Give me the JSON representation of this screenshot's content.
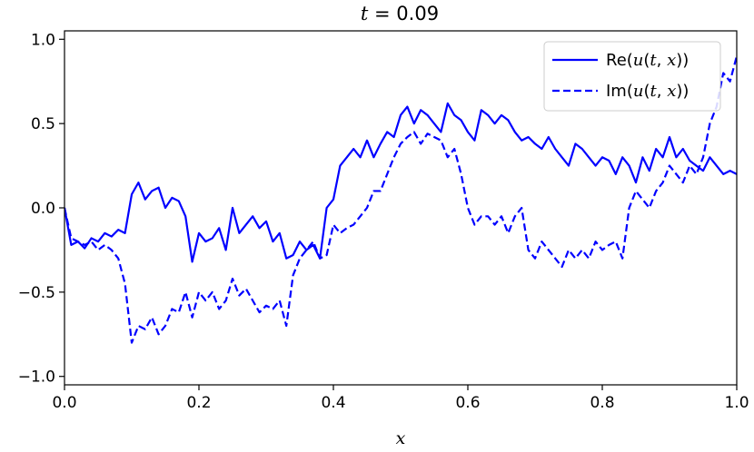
{
  "chart_data": {
    "type": "line",
    "title": "t = 0.09",
    "xlabel": "x",
    "ylabel": "",
    "xlim": [
      0.0,
      1.0
    ],
    "ylim": [
      -1.05,
      1.05
    ],
    "x_ticks": [
      "0.0",
      "0.2",
      "0.4",
      "0.6",
      "0.8",
      "1.0"
    ],
    "y_ticks": [
      "−1.0",
      "−0.5",
      "0.0",
      "0.5",
      "1.0"
    ],
    "grid": false,
    "legend_position": "upper-right",
    "colors": {
      "line": "#0000ff",
      "axes": "#000000",
      "background": "#ffffff"
    },
    "series": [
      {
        "name": "Re(u(t, x))",
        "style": "solid",
        "x": [
          0.0,
          0.01,
          0.02,
          0.03,
          0.04,
          0.05,
          0.06,
          0.07,
          0.08,
          0.09,
          0.1,
          0.11,
          0.12,
          0.13,
          0.14,
          0.15,
          0.16,
          0.17,
          0.18,
          0.19,
          0.2,
          0.21,
          0.22,
          0.23,
          0.24,
          0.25,
          0.26,
          0.27,
          0.28,
          0.29,
          0.3,
          0.31,
          0.32,
          0.33,
          0.34,
          0.35,
          0.36,
          0.37,
          0.38,
          0.39,
          0.4,
          0.41,
          0.42,
          0.43,
          0.44,
          0.45,
          0.46,
          0.47,
          0.48,
          0.49,
          0.5,
          0.51,
          0.52,
          0.53,
          0.54,
          0.55,
          0.56,
          0.57,
          0.58,
          0.59,
          0.6,
          0.61,
          0.62,
          0.63,
          0.64,
          0.65,
          0.66,
          0.67,
          0.68,
          0.69,
          0.7,
          0.71,
          0.72,
          0.73,
          0.74,
          0.75,
          0.76,
          0.77,
          0.78,
          0.79,
          0.8,
          0.81,
          0.82,
          0.83,
          0.84,
          0.85,
          0.86,
          0.87,
          0.88,
          0.89,
          0.9,
          0.91,
          0.92,
          0.93,
          0.94,
          0.95,
          0.96,
          0.97,
          0.98,
          0.99,
          1.0
        ],
        "y": [
          0.0,
          -0.22,
          -0.2,
          -0.24,
          -0.18,
          -0.2,
          -0.15,
          -0.17,
          -0.13,
          -0.15,
          0.08,
          0.15,
          0.05,
          0.1,
          0.12,
          0.0,
          0.06,
          0.04,
          -0.05,
          -0.32,
          -0.15,
          -0.2,
          -0.18,
          -0.12,
          -0.25,
          0.0,
          -0.15,
          -0.1,
          -0.05,
          -0.12,
          -0.08,
          -0.2,
          -0.15,
          -0.3,
          -0.28,
          -0.2,
          -0.25,
          -0.22,
          -0.3,
          0.0,
          0.05,
          0.25,
          0.3,
          0.35,
          0.3,
          0.4,
          0.3,
          0.38,
          0.45,
          0.42,
          0.55,
          0.6,
          0.5,
          0.58,
          0.55,
          0.5,
          0.45,
          0.62,
          0.55,
          0.52,
          0.45,
          0.4,
          0.58,
          0.55,
          0.5,
          0.55,
          0.52,
          0.45,
          0.4,
          0.42,
          0.38,
          0.35,
          0.42,
          0.35,
          0.3,
          0.25,
          0.38,
          0.35,
          0.3,
          0.25,
          0.3,
          0.28,
          0.2,
          0.3,
          0.25,
          0.15,
          0.3,
          0.22,
          0.35,
          0.3,
          0.42,
          0.3,
          0.35,
          0.28,
          0.25,
          0.22,
          0.3,
          0.25,
          0.2,
          0.22,
          0.2
        ]
      },
      {
        "name": "Im(u(t, x))",
        "style": "dashed",
        "x": [
          0.0,
          0.01,
          0.02,
          0.03,
          0.04,
          0.05,
          0.06,
          0.07,
          0.08,
          0.09,
          0.1,
          0.11,
          0.12,
          0.13,
          0.14,
          0.15,
          0.16,
          0.17,
          0.18,
          0.19,
          0.2,
          0.21,
          0.22,
          0.23,
          0.24,
          0.25,
          0.26,
          0.27,
          0.28,
          0.29,
          0.3,
          0.31,
          0.32,
          0.33,
          0.34,
          0.35,
          0.36,
          0.37,
          0.38,
          0.39,
          0.4,
          0.41,
          0.42,
          0.43,
          0.44,
          0.45,
          0.46,
          0.47,
          0.48,
          0.49,
          0.5,
          0.51,
          0.52,
          0.53,
          0.54,
          0.55,
          0.56,
          0.57,
          0.58,
          0.59,
          0.6,
          0.61,
          0.62,
          0.63,
          0.64,
          0.65,
          0.66,
          0.67,
          0.68,
          0.69,
          0.7,
          0.71,
          0.72,
          0.73,
          0.74,
          0.75,
          0.76,
          0.77,
          0.78,
          0.79,
          0.8,
          0.81,
          0.82,
          0.83,
          0.84,
          0.85,
          0.86,
          0.87,
          0.88,
          0.89,
          0.9,
          0.91,
          0.92,
          0.93,
          0.94,
          0.95,
          0.96,
          0.97,
          0.98,
          0.99,
          1.0
        ],
        "y": [
          0.0,
          -0.18,
          -0.2,
          -0.22,
          -0.2,
          -0.25,
          -0.22,
          -0.25,
          -0.3,
          -0.45,
          -0.8,
          -0.7,
          -0.72,
          -0.65,
          -0.75,
          -0.7,
          -0.6,
          -0.62,
          -0.5,
          -0.65,
          -0.5,
          -0.55,
          -0.5,
          -0.6,
          -0.55,
          -0.42,
          -0.52,
          -0.48,
          -0.55,
          -0.62,
          -0.58,
          -0.6,
          -0.55,
          -0.7,
          -0.4,
          -0.3,
          -0.25,
          -0.2,
          -0.3,
          -0.28,
          -0.1,
          -0.15,
          -0.12,
          -0.1,
          -0.05,
          0.0,
          0.1,
          0.1,
          0.2,
          0.3,
          0.38,
          0.42,
          0.45,
          0.38,
          0.44,
          0.42,
          0.4,
          0.3,
          0.35,
          0.2,
          0.0,
          -0.1,
          -0.05,
          -0.05,
          -0.1,
          -0.05,
          -0.15,
          -0.05,
          0.0,
          -0.25,
          -0.3,
          -0.2,
          -0.25,
          -0.3,
          -0.35,
          -0.25,
          -0.3,
          -0.25,
          -0.3,
          -0.2,
          -0.25,
          -0.22,
          -0.2,
          -0.3,
          0.0,
          0.1,
          0.05,
          0.0,
          0.1,
          0.15,
          0.25,
          0.2,
          0.15,
          0.25,
          0.2,
          0.3,
          0.5,
          0.6,
          0.8,
          0.75,
          0.9
        ]
      }
    ]
  }
}
